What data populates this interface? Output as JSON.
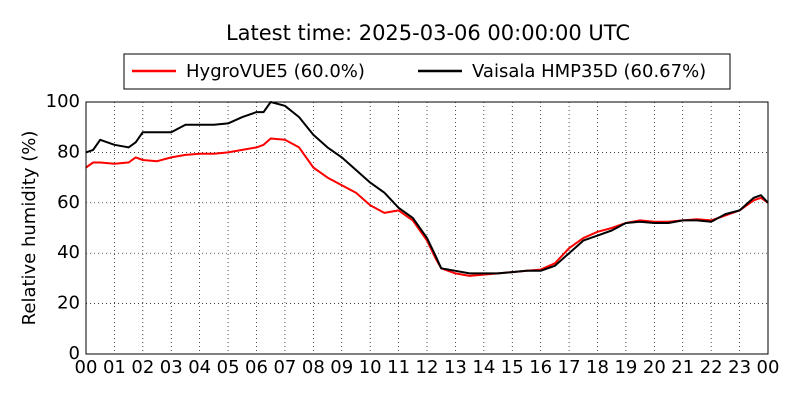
{
  "chart_data": {
    "type": "line",
    "title": "Latest time: 2025-03-06 00:00:00 UTC",
    "ylabel": "Relative humidity (%)",
    "x": [
      0,
      0.25,
      0.5,
      1,
      1.5,
      1.75,
      2,
      2.5,
      3,
      3.5,
      4,
      4.5,
      5,
      5.5,
      6,
      6.25,
      6.5,
      7,
      7.5,
      8,
      8.5,
      9,
      9.5,
      10,
      10.5,
      11,
      11.5,
      12,
      12.3,
      12.5,
      13,
      13.5,
      14,
      14.5,
      15,
      15.5,
      16,
      16.5,
      17,
      17.5,
      18,
      18.5,
      19,
      19.5,
      20,
      20.5,
      21,
      21.5,
      22,
      22.5,
      23,
      23.5,
      23.75,
      24
    ],
    "series": [
      {
        "name": "HygroVUE5 (60.0%)",
        "color": "#ff0000",
        "values": [
          74,
          76,
          76,
          75.5,
          76,
          78,
          77,
          76.5,
          78,
          79,
          79.5,
          79.5,
          80,
          81,
          82,
          83,
          85.5,
          85,
          82,
          74,
          70,
          67,
          64,
          59,
          56,
          57,
          53,
          45,
          38,
          34,
          32,
          31,
          31.5,
          32,
          32.5,
          33,
          33.5,
          36,
          42,
          46,
          48.5,
          50,
          52,
          53,
          52.5,
          52.5,
          53,
          53.5,
          53,
          55,
          57,
          61,
          62,
          60
        ]
      },
      {
        "name": "Vaisala HMP35D (60.67%)",
        "color": "#000000",
        "values": [
          80,
          81,
          85,
          83,
          82,
          84,
          88,
          88,
          88,
          91,
          91,
          91,
          91.5,
          94,
          96,
          96,
          100,
          98.5,
          94,
          87,
          82,
          78,
          73,
          68,
          64,
          58,
          54,
          46,
          39,
          34,
          33,
          32,
          32,
          32,
          32.5,
          33,
          33,
          35,
          40,
          45,
          47,
          49,
          52,
          52.5,
          52,
          52,
          53,
          53,
          52.5,
          55.5,
          57,
          62,
          63,
          60
        ]
      }
    ],
    "xlim": [
      0,
      24
    ],
    "xticks": [
      {
        "value": 0,
        "label": "00"
      },
      {
        "value": 1,
        "label": "01"
      },
      {
        "value": 2,
        "label": "02"
      },
      {
        "value": 3,
        "label": "03"
      },
      {
        "value": 4,
        "label": "04"
      },
      {
        "value": 5,
        "label": "05"
      },
      {
        "value": 6,
        "label": "06"
      },
      {
        "value": 7,
        "label": "07"
      },
      {
        "value": 8,
        "label": "08"
      },
      {
        "value": 9,
        "label": "09"
      },
      10,
      11,
      12,
      13,
      14,
      15,
      16,
      17,
      18,
      19,
      20,
      21,
      22,
      23,
      {
        "value": 24,
        "label": "00"
      }
    ],
    "ylim": [
      0,
      100
    ],
    "yticks": [
      0,
      20,
      40,
      60,
      80,
      100
    ],
    "grid": true,
    "legend": "top"
  }
}
